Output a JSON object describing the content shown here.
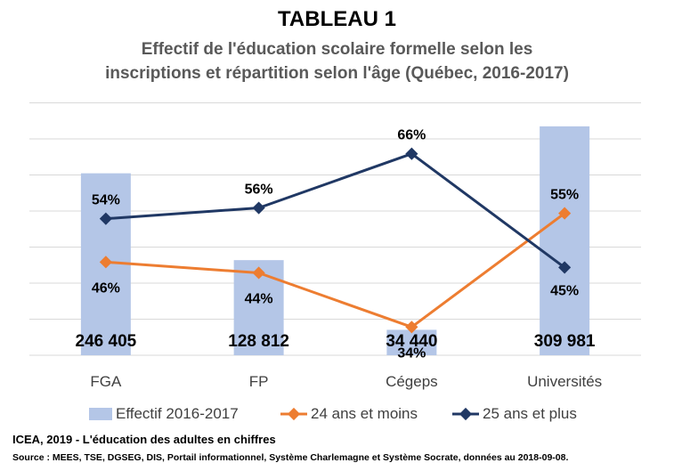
{
  "header": {
    "title": "TABLEAU 1",
    "subtitle_line1": "Effectif de l'éducation scolaire formelle selon les",
    "subtitle_line2": "inscriptions et répartition selon l'âge (Québec, 2016-2017)"
  },
  "footer": {
    "source_main": "ICEA, 2019 - L'éducation des adultes en chiffres",
    "source_detail": "Source : MEES, TSE, DGSEG, DIS, Portail informationnel, Système Charlemagne  et Système Socrate, données au 2018-09-08."
  },
  "colors": {
    "bars": "#b4c6e7",
    "under24": "#ed7d31",
    "over25": "#203864",
    "grid": "#d9d9d9"
  },
  "chart_data": {
    "type": "bar",
    "categories": [
      "FGA",
      "FP",
      "Cégeps",
      "Universités"
    ],
    "grid": true,
    "legend_position": "bottom",
    "series": [
      {
        "name": "Effectif 2016-2017",
        "type": "bar",
        "values": [
          246405,
          128812,
          34440,
          309981
        ],
        "labels": [
          "246 405",
          "128 812",
          "34 440",
          "309 981"
        ]
      },
      {
        "name": "24 ans et moins",
        "type": "line",
        "values": [
          46,
          44,
          34,
          55
        ],
        "labels": [
          "46%",
          "44%",
          "34%",
          "55%"
        ]
      },
      {
        "name": "25 ans et plus",
        "type": "line",
        "values": [
          54,
          56,
          66,
          45
        ],
        "labels": [
          "54%",
          "56%",
          "66%",
          "45%"
        ]
      }
    ]
  }
}
